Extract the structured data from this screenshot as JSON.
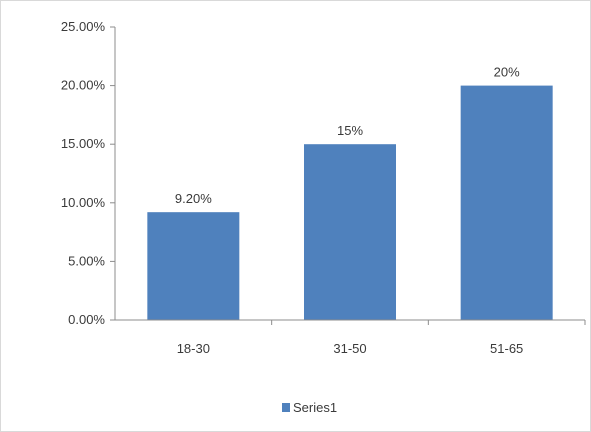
{
  "chart_data": {
    "type": "bar",
    "title": "",
    "xlabel": "",
    "ylabel": "",
    "categories": [
      "18-30",
      "31-50",
      "51-65"
    ],
    "series": [
      {
        "name": "Series1",
        "values": [
          9.2,
          15,
          20
        ],
        "data_labels": [
          "9.20%",
          "15%",
          "20%"
        ],
        "color": "#4f81bd"
      }
    ],
    "ylim": [
      0,
      25
    ],
    "yticks": [
      0,
      5,
      10,
      15,
      20,
      25
    ],
    "ytick_labels": [
      "0.00%",
      "5.00%",
      "10.00%",
      "15.00%",
      "20.00%",
      "25.00%"
    ],
    "grid": false,
    "legend": "bottom"
  }
}
